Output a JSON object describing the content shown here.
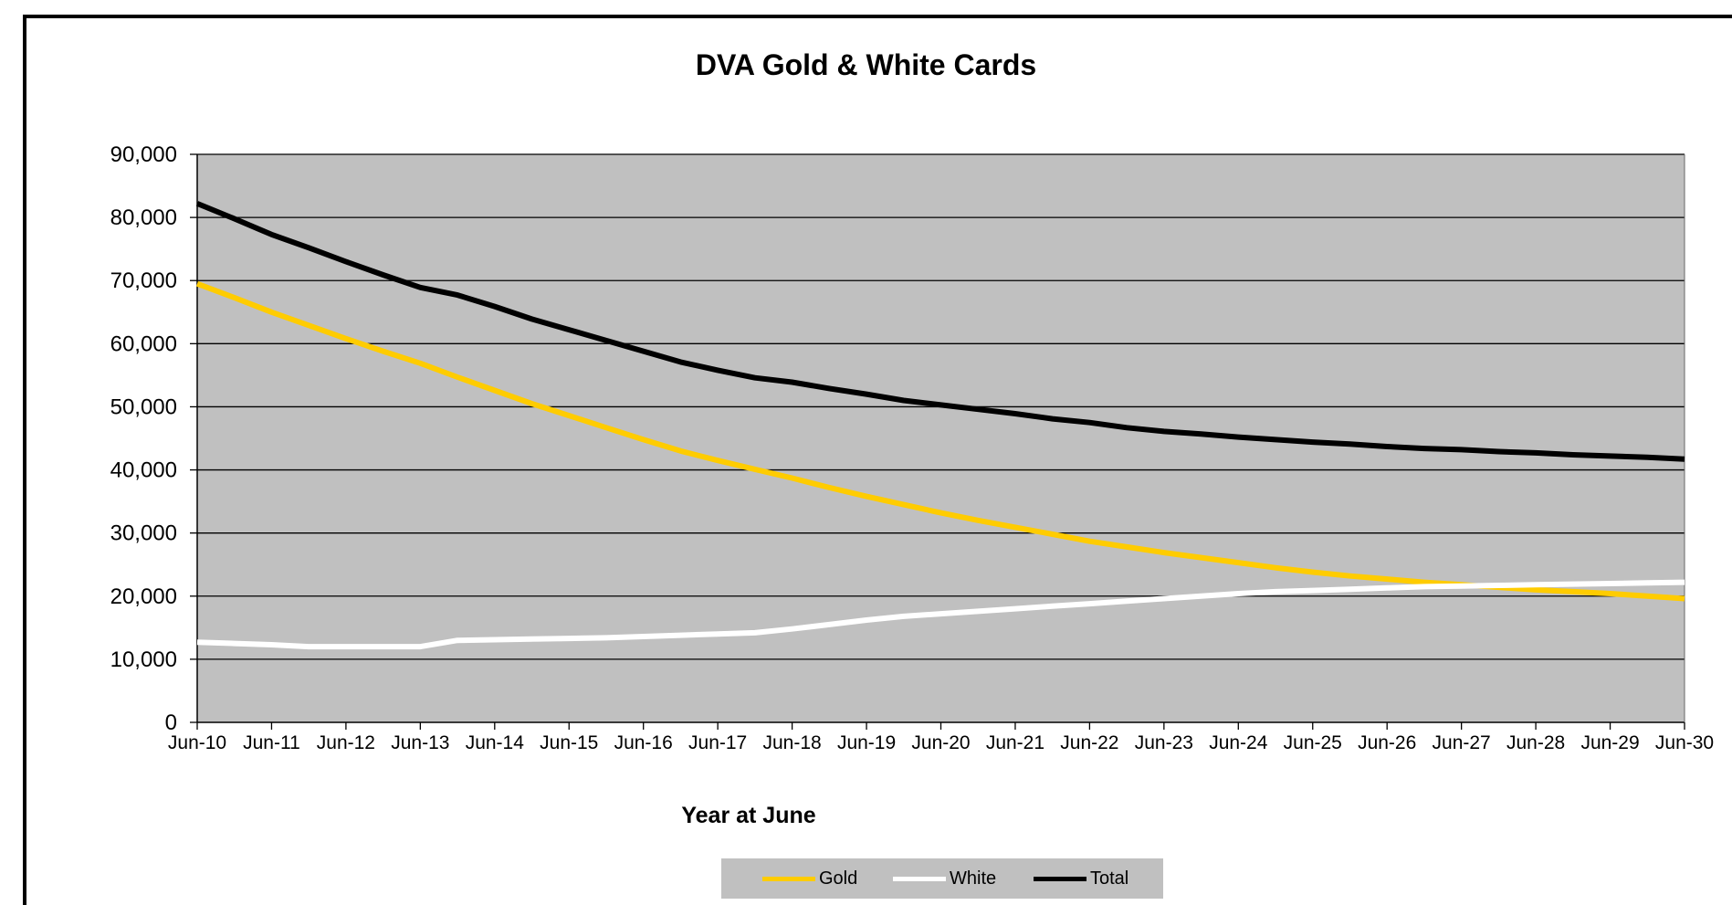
{
  "chart_data": {
    "type": "line",
    "title": "DVA Gold & White Cards",
    "xlabel": "Year at June",
    "ylabel": "",
    "categories": [
      "Jun-10",
      "Jun-11",
      "Jun-12",
      "Jun-13",
      "Jun-14",
      "Jun-15",
      "Jun-16",
      "Jun-17",
      "Jun-18",
      "Jun-19",
      "Jun-20",
      "Jun-21",
      "Jun-22",
      "Jun-23",
      "Jun-24",
      "Jun-25",
      "Jun-26",
      "Jun-27",
      "Jun-28",
      "Jun-29",
      "Jun-30"
    ],
    "ylim": [
      0,
      90000
    ],
    "yticks": [
      "0",
      "10,000",
      "20,000",
      "30,000",
      "40,000",
      "50,000",
      "60,000",
      "70,000",
      "80,000",
      "90,000"
    ],
    "ytick_values": [
      0,
      10000,
      20000,
      30000,
      40000,
      50000,
      60000,
      70000,
      80000,
      90000
    ],
    "grid": true,
    "legend_position": "bottom",
    "plot_background": "#c0c0c0",
    "series": [
      {
        "name": "Gold",
        "color": "#ffcc00",
        "x": [
          0,
          0.5,
          1,
          1.5,
          2,
          2.5,
          3,
          3.5,
          4,
          4.5,
          5,
          5.5,
          6,
          6.5,
          7,
          7.5,
          8,
          8.5,
          9,
          9.5,
          10,
          10.5,
          11,
          11.5,
          12,
          12.5,
          13,
          13.5,
          14,
          14.5,
          15,
          15.5,
          16,
          16.5,
          17,
          17.5,
          18,
          18.5,
          19,
          19.5,
          20
        ],
        "values": [
          69500,
          67300,
          65000,
          62900,
          60800,
          58800,
          56900,
          54700,
          52600,
          50500,
          48600,
          46700,
          44800,
          43000,
          41500,
          40100,
          38700,
          37200,
          35800,
          34500,
          33200,
          32000,
          30900,
          29800,
          28700,
          27800,
          26900,
          26100,
          25300,
          24500,
          23800,
          23200,
          22700,
          22200,
          21800,
          21400,
          21000,
          20700,
          20400,
          20000,
          19600
        ]
      },
      {
        "name": "White",
        "color": "#ffffff",
        "x": [
          0,
          0.5,
          1,
          1.5,
          2,
          2.5,
          3,
          3.5,
          4,
          4.5,
          5,
          5.5,
          6,
          6.5,
          7,
          7.5,
          8,
          8.5,
          9,
          9.5,
          10,
          10.5,
          11,
          11.5,
          12,
          12.5,
          13,
          13.5,
          14,
          14.5,
          15,
          15.5,
          16,
          16.5,
          17,
          17.5,
          18,
          18.5,
          19,
          19.5,
          20
        ],
        "values": [
          12700,
          12500,
          12300,
          12000,
          12000,
          12000,
          12000,
          13000,
          13100,
          13200,
          13300,
          13400,
          13600,
          13800,
          14000,
          14200,
          14800,
          15500,
          16200,
          16800,
          17200,
          17600,
          18000,
          18400,
          18800,
          19200,
          19600,
          20000,
          20400,
          20700,
          20900,
          21100,
          21300,
          21500,
          21600,
          21700,
          21800,
          21900,
          22000,
          22100,
          22200
        ]
      },
      {
        "name": "Total",
        "color": "#000000",
        "x": [
          0,
          0.5,
          1,
          1.5,
          2,
          2.5,
          3,
          3.5,
          4,
          4.5,
          5,
          5.5,
          6,
          6.5,
          7,
          7.5,
          8,
          8.5,
          9,
          9.5,
          10,
          10.5,
          11,
          11.5,
          12,
          12.5,
          13,
          13.5,
          14,
          14.5,
          15,
          15.5,
          16,
          16.5,
          17,
          17.5,
          18,
          18.5,
          19,
          19.5,
          20
        ],
        "values": [
          82200,
          79800,
          77300,
          75200,
          73000,
          70900,
          68900,
          67700,
          65900,
          63900,
          62200,
          60500,
          58800,
          57100,
          55800,
          54600,
          53900,
          52900,
          52000,
          51000,
          50300,
          49600,
          48900,
          48100,
          47500,
          46700,
          46100,
          45700,
          45200,
          44800,
          44400,
          44100,
          43700,
          43400,
          43200,
          42900,
          42700,
          42400,
          42200,
          42000,
          41700
        ]
      }
    ]
  }
}
